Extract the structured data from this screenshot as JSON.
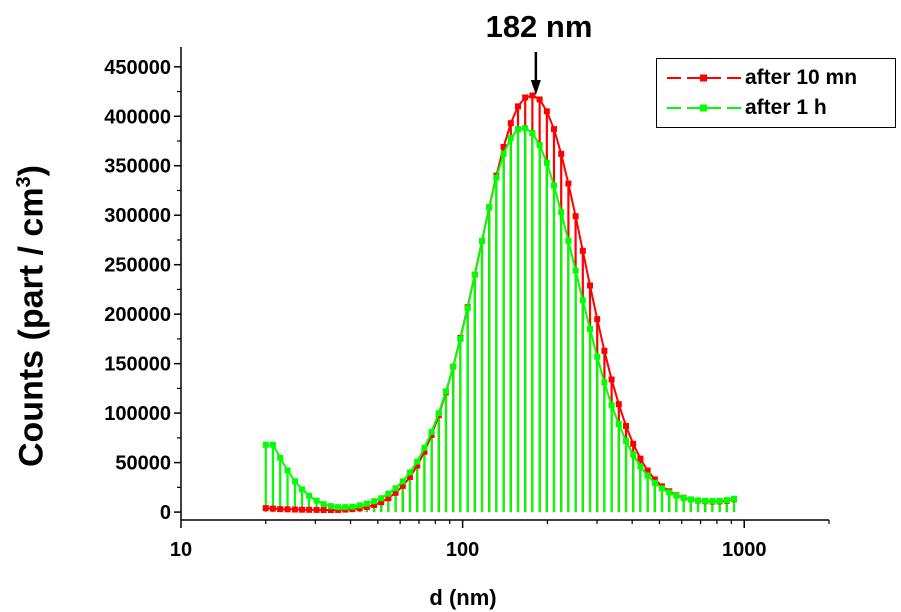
{
  "chart_data": {
    "type": "bar",
    "xscale": "log",
    "xlim": [
      10,
      2000
    ],
    "ylim": [
      -8000,
      470000
    ],
    "xlabel": "d (nm)",
    "ylabel_main": "Counts (part / cm",
    "ylabel_sup": "3",
    "ylabel_end": ")",
    "xticks": [
      10,
      100,
      1000
    ],
    "xtick_labels": [
      "10",
      "100",
      "1000"
    ],
    "yticks": [
      0,
      50000,
      100000,
      150000,
      200000,
      250000,
      300000,
      350000,
      400000,
      450000
    ],
    "ytick_labels": [
      "0",
      "50000",
      "100000",
      "150000",
      "200000",
      "250000",
      "300000",
      "350000",
      "400000",
      "450000"
    ],
    "annotation": {
      "text": "182 nm",
      "x": 182,
      "y": 420000
    },
    "legend_position": "top-right",
    "x": [
      20,
      21.2,
      22.5,
      23.9,
      25.4,
      26.9,
      28.5,
      30.3,
      32.1,
      34.1,
      36.1,
      38.3,
      40.6,
      43.1,
      45.7,
      48.5,
      51.4,
      54.5,
      57.8,
      61.3,
      65.0,
      69.0,
      73.2,
      77.6,
      82.3,
      87.3,
      92.6,
      98.2,
      104.2,
      110.5,
      117.2,
      124.3,
      131.8,
      139.8,
      148.3,
      157.3,
      166.8,
      176.9,
      187.7,
      199.1,
      211.1,
      223.9,
      237.5,
      251.9,
      267.2,
      283.4,
      300.6,
      318.8,
      338.1,
      358.6,
      380.4,
      403.4,
      427.9,
      453.9,
      481.4,
      510.6,
      541.6,
      574.4,
      609.3,
      646.2,
      685.4,
      727.0,
      771.0,
      817.8,
      867.4,
      920.0
    ],
    "series": [
      {
        "name": "after 10 mn",
        "color": "#ff0000",
        "values": [
          4000,
          3500,
          3000,
          2800,
          2600,
          2400,
          2300,
          2200,
          2100,
          2100,
          2200,
          2500,
          3000,
          3800,
          5200,
          7200,
          10000,
          14000,
          19500,
          26500,
          35500,
          47000,
          61000,
          78000,
          98000,
          121000,
          147000,
          176000,
          207000,
          240000,
          274000,
          308000,
          340000,
          369000,
          393000,
          410000,
          419000,
          421000,
          417000,
          405000,
          387000,
          362000,
          332000,
          299000,
          264000,
          229000,
          195000,
          163000,
          134000,
          109000,
          87000,
          69000,
          54000,
          42000,
          33000,
          26000,
          21000,
          17000,
          14500,
          12800,
          11600,
          11000,
          10700,
          10800,
          11500,
          13000
        ]
      },
      {
        "name": "after 1 h",
        "color": "#00ff00",
        "values": [
          68000,
          68000,
          55000,
          42000,
          31000,
          23000,
          16500,
          11500,
          8000,
          6000,
          5000,
          5000,
          5500,
          6800,
          8500,
          11000,
          14000,
          18500,
          24000,
          31000,
          40000,
          51000,
          65000,
          81000,
          100000,
          122000,
          147000,
          175000,
          206000,
          240000,
          274000,
          308000,
          338000,
          362000,
          378000,
          387000,
          388000,
          383000,
          371000,
          353000,
          330000,
          303000,
          274000,
          244000,
          214000,
          185000,
          157000,
          131000,
          108000,
          89000,
          72000,
          58000,
          46000,
          37000,
          29500,
          24000,
          19800,
          16600,
          14200,
          12700,
          11800,
          11300,
          11200,
          11400,
          12100,
          13500
        ]
      }
    ]
  }
}
